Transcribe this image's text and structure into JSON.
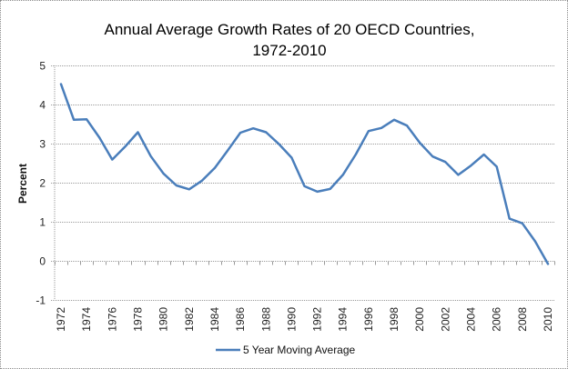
{
  "chart_data": {
    "type": "line",
    "title": "Annual Average Growth Rates of  20 OECD Countries,",
    "subtitle": "1972-2010",
    "xlabel": "",
    "ylabel": "Percent",
    "ylim": [
      -1,
      5
    ],
    "yticks": [
      5,
      4,
      3,
      2,
      1,
      0,
      -1
    ],
    "grid": true,
    "legend_position": "bottom",
    "x": [
      1972,
      1973,
      1974,
      1975,
      1976,
      1977,
      1978,
      1979,
      1980,
      1981,
      1982,
      1983,
      1984,
      1985,
      1986,
      1987,
      1988,
      1989,
      1990,
      1991,
      1992,
      1993,
      1994,
      1995,
      1996,
      1997,
      1998,
      1999,
      2000,
      2001,
      2002,
      2003,
      2004,
      2005,
      2006,
      2007,
      2008,
      2009,
      2010
    ],
    "xtick_labels": [
      "1972",
      "1974",
      "1976",
      "1978",
      "1980",
      "1982",
      "1984",
      "1986",
      "1988",
      "1990",
      "1992",
      "1994",
      "1996",
      "1998",
      "2000",
      "2002",
      "2004",
      "2006",
      "2008",
      "2010"
    ],
    "series": [
      {
        "name": "5 Year Moving Average",
        "color": "#4a7ebb",
        "values": [
          4.52,
          3.61,
          3.62,
          3.15,
          2.59,
          2.92,
          3.29,
          2.68,
          2.23,
          1.93,
          1.83,
          2.05,
          2.38,
          2.82,
          3.28,
          3.39,
          3.29,
          2.99,
          2.64,
          1.91,
          1.77,
          1.84,
          2.2,
          2.72,
          3.32,
          3.4,
          3.61,
          3.46,
          3.02,
          2.67,
          2.53,
          2.2,
          2.44,
          2.72,
          2.41,
          1.08,
          0.96,
          0.5,
          -0.08
        ]
      }
    ]
  }
}
